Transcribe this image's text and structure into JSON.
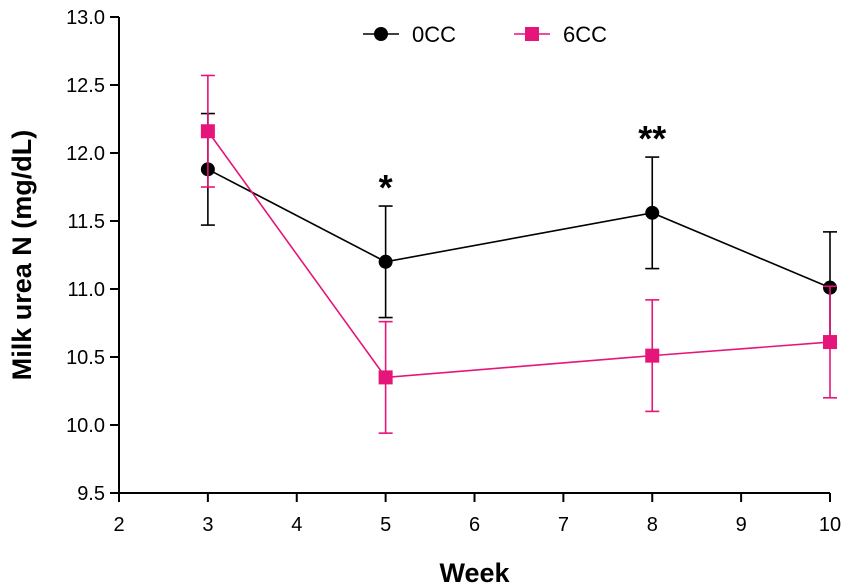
{
  "chart_data": {
    "type": "line",
    "title": "",
    "xlabel": "Week",
    "ylabel": "Milk urea N (mg/dL)",
    "xlim": [
      2,
      10
    ],
    "ylim": [
      9.5,
      13.0
    ],
    "x_ticks": [
      2,
      3,
      4,
      5,
      6,
      7,
      8,
      9,
      10
    ],
    "x_tick_labels": [
      "2",
      "3",
      "4",
      "5",
      "6",
      "7",
      "8",
      "9",
      "10"
    ],
    "y_ticks": [
      9.5,
      10.0,
      10.5,
      11.0,
      11.5,
      12.0,
      12.5,
      13.0
    ],
    "y_tick_labels": [
      "9.5",
      "10.0",
      "10.5",
      "11.0",
      "11.5",
      "12.0",
      "12.5",
      "13.0"
    ],
    "grid": false,
    "legend_position": "top-center",
    "series": [
      {
        "name": "0CC",
        "color": "#000000",
        "marker": "circle",
        "x": [
          3,
          5,
          8,
          10
        ],
        "y": [
          11.88,
          11.2,
          11.56,
          11.01
        ],
        "error": [
          0.41,
          0.41,
          0.41,
          0.41
        ]
      },
      {
        "name": "6CC",
        "color": "#e5157a",
        "marker": "square",
        "x": [
          3,
          5,
          8,
          10
        ],
        "y": [
          12.16,
          10.35,
          10.51,
          10.61
        ],
        "error": [
          0.41,
          0.41,
          0.41,
          0.41
        ]
      }
    ],
    "annotations": [
      {
        "x": 5,
        "y": 11.61,
        "text": "*"
      },
      {
        "x": 8,
        "y": 11.97,
        "text": "**"
      }
    ]
  }
}
